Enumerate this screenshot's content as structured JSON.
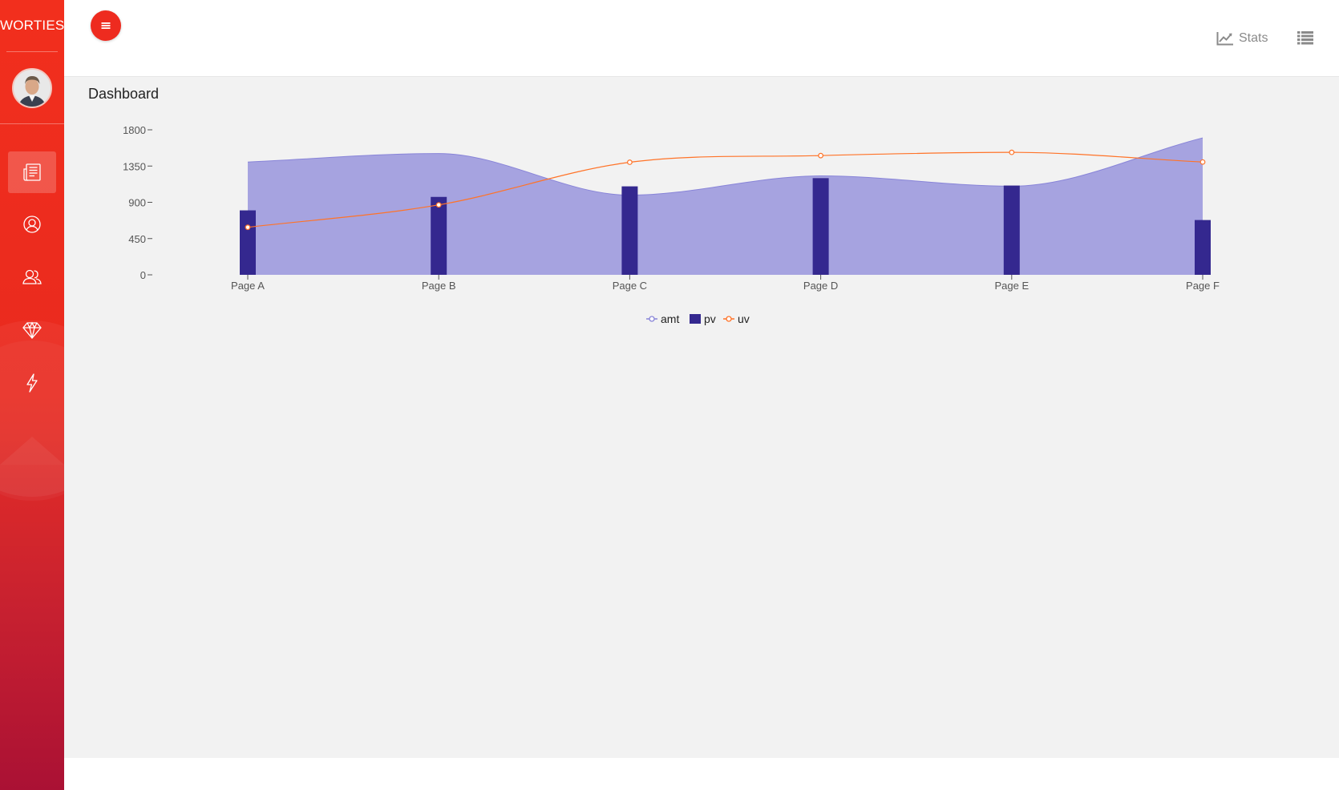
{
  "app": {
    "brand": "WORTIES"
  },
  "sidebar": {
    "items": [
      {
        "icon": "news-icon",
        "active": true
      },
      {
        "icon": "user-icon",
        "active": false
      },
      {
        "icon": "users-icon",
        "active": false
      },
      {
        "icon": "diamond-icon",
        "active": false
      },
      {
        "icon": "bolt-icon",
        "active": false
      }
    ]
  },
  "header": {
    "menu_icon": "menu-icon",
    "stats_label": "Stats",
    "stats_icon": "line-chart-icon",
    "list_icon": "list-icon"
  },
  "main": {
    "title": "Dashboard"
  },
  "colors": {
    "accent": "#ee2b1f",
    "amt": "#8884d8",
    "pv": "#34288f",
    "uv": "#ff7328"
  },
  "chart_data": {
    "type": "composed",
    "categories": [
      "Page A",
      "Page B",
      "Page C",
      "Page D",
      "Page E",
      "Page F"
    ],
    "ylim": [
      0,
      1800
    ],
    "yticks": [
      0,
      450,
      900,
      1350,
      1800
    ],
    "grid": false,
    "legend": "bottom-center",
    "series": [
      {
        "name": "amt",
        "kind": "area",
        "values": [
          1400,
          1506,
          989,
          1228,
          1100,
          1700
        ]
      },
      {
        "name": "pv",
        "kind": "bar",
        "values": [
          800,
          967,
          1098,
          1200,
          1108,
          680
        ]
      },
      {
        "name": "uv",
        "kind": "line",
        "values": [
          590,
          868,
          1397,
          1480,
          1520,
          1400
        ]
      }
    ]
  }
}
